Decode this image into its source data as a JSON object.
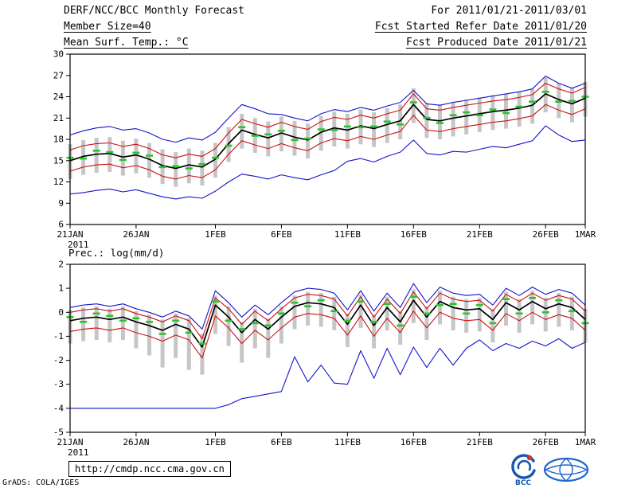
{
  "header": {
    "title": "DERF/NCC/BCC Monthly Forecast",
    "member_size": "Member Size=40",
    "for_range": "For 2011/01/21-2011/03/01",
    "fcst_started": "Fcst Started Refer Date 2011/01/20",
    "fcst_produced": "Fcst Produced Date 2011/01/21"
  },
  "footer": {
    "url": "http://cmdp.ncc.cma.gov.cn",
    "credit": "GrADS: COLA/IGES",
    "logos": [
      "bcc-logo",
      "cma-logo"
    ]
  },
  "colors": {
    "envelope_blue": "#1414cc",
    "bound_red": "#cc1111",
    "mean_black": "#000000",
    "median_green": "#2fc12f",
    "spread_gray": "#c6c6c6",
    "logo_blue": "#1558b0",
    "logo_red": "#d43224"
  },
  "chart_data": [
    {
      "type": "line",
      "title": "Mean Surf. Temp.: °C",
      "x_days": 40,
      "x_tick_labels": [
        "21JAN",
        "26JAN",
        "1FEB",
        "6FEB",
        "11FEB",
        "16FEB",
        "21FEB",
        "26FEB",
        "1MAR"
      ],
      "x_tick_day_index": [
        0,
        5,
        11,
        16,
        21,
        26,
        31,
        36,
        39
      ],
      "x_sub_label": "2011",
      "ylim": [
        6,
        30
      ],
      "yticks": [
        30,
        27,
        24,
        21,
        18,
        15,
        12,
        9,
        6
      ],
      "grid": false,
      "legend": "none",
      "series": [
        {
          "name": "ensemble-spread",
          "type": "range-bar",
          "color": "#c6c6c6",
          "low": [
            12.4,
            13.0,
            13.3,
            13.4,
            12.9,
            13.2,
            12.6,
            11.7,
            11.3,
            11.8,
            11.5,
            12.6,
            14.8,
            16.7,
            16.1,
            15.6,
            16.3,
            15.7,
            15.3,
            16.4,
            17.0,
            16.7,
            17.3,
            16.9,
            17.5,
            18.0,
            20.3,
            18.2,
            18.0,
            18.4,
            18.7,
            19.0,
            19.3,
            19.5,
            19.8,
            20.2,
            21.8,
            21.0,
            20.4,
            21.2
          ],
          "high": [
            17.3,
            17.9,
            18.2,
            18.3,
            17.8,
            18.1,
            17.5,
            16.6,
            16.2,
            16.7,
            16.4,
            17.5,
            19.7,
            21.6,
            21.0,
            20.5,
            21.2,
            20.6,
            20.2,
            21.3,
            21.9,
            21.6,
            22.2,
            21.8,
            22.4,
            22.9,
            25.2,
            23.1,
            22.9,
            23.3,
            23.6,
            23.9,
            24.2,
            24.4,
            24.7,
            25.1,
            26.7,
            25.9,
            25.3,
            26.1
          ]
        },
        {
          "name": "ensemble-max",
          "type": "line",
          "color": "#1414cc",
          "values": [
            18.6,
            19.2,
            19.6,
            19.8,
            19.3,
            19.5,
            18.9,
            18.0,
            17.6,
            18.2,
            17.9,
            19.0,
            21.0,
            22.9,
            22.3,
            21.6,
            21.5,
            21.0,
            20.6,
            21.6,
            22.2,
            21.9,
            22.5,
            22.1,
            22.7,
            23.2,
            24.9,
            23.0,
            22.8,
            23.2,
            23.5,
            23.8,
            24.1,
            24.4,
            24.7,
            25.1,
            26.9,
            25.9,
            25.2,
            25.9
          ]
        },
        {
          "name": "ensemble-min",
          "type": "line",
          "color": "#1414cc",
          "values": [
            10.3,
            10.5,
            10.8,
            11.0,
            10.6,
            10.9,
            10.4,
            9.9,
            9.6,
            9.9,
            9.7,
            10.7,
            12.0,
            13.1,
            12.8,
            12.4,
            13.0,
            12.6,
            12.3,
            13.0,
            13.6,
            14.9,
            15.3,
            14.8,
            15.6,
            16.2,
            17.9,
            16.0,
            15.8,
            16.3,
            16.2,
            16.6,
            17.0,
            16.8,
            17.3,
            17.8,
            19.9,
            18.6,
            17.7,
            17.9
          ]
        },
        {
          "name": "upper-bound",
          "type": "line",
          "color": "#cc1111",
          "values": [
            16.5,
            17.1,
            17.4,
            17.5,
            17.0,
            17.3,
            16.7,
            15.8,
            15.4,
            15.9,
            15.6,
            16.7,
            18.9,
            20.8,
            20.2,
            19.7,
            20.4,
            19.8,
            19.4,
            20.5,
            21.1,
            20.8,
            21.4,
            21.0,
            21.6,
            22.1,
            24.4,
            22.3,
            22.1,
            22.5,
            22.8,
            23.1,
            23.4,
            23.6,
            23.9,
            24.3,
            25.9,
            25.1,
            24.5,
            25.3
          ]
        },
        {
          "name": "lower-bound",
          "type": "line",
          "color": "#cc1111",
          "values": [
            13.5,
            14.1,
            14.4,
            14.5,
            14.0,
            14.3,
            13.7,
            12.8,
            12.4,
            12.9,
            12.6,
            13.7,
            15.9,
            17.8,
            17.2,
            16.7,
            17.4,
            16.8,
            16.4,
            17.5,
            18.1,
            17.8,
            18.4,
            18.0,
            18.6,
            19.1,
            21.4,
            19.3,
            19.1,
            19.5,
            19.8,
            20.1,
            20.4,
            20.6,
            20.9,
            21.3,
            22.9,
            22.1,
            21.5,
            22.3
          ]
        },
        {
          "name": "ensemble-mean",
          "type": "line",
          "color": "#000000",
          "width": 1.7,
          "values": [
            15.0,
            15.6,
            15.9,
            16.0,
            15.5,
            15.8,
            15.2,
            14.3,
            13.9,
            14.4,
            14.1,
            15.2,
            17.4,
            19.3,
            18.7,
            18.2,
            18.9,
            18.3,
            17.9,
            19.0,
            19.6,
            19.3,
            19.9,
            19.5,
            20.1,
            20.6,
            22.9,
            20.8,
            20.6,
            21.0,
            21.3,
            21.6,
            21.9,
            22.1,
            22.4,
            22.8,
            24.4,
            23.6,
            23.0,
            23.8
          ]
        },
        {
          "name": "ensemble-median",
          "type": "dash",
          "color": "#2fc12f",
          "values": [
            15.4,
            15.3,
            16.4,
            16.2,
            15.1,
            16.1,
            15.7,
            14.1,
            14.2,
            13.9,
            14.5,
            15.4,
            17.1,
            19.7,
            18.5,
            18.7,
            19.2,
            17.9,
            18.1,
            19.4,
            19.3,
            19.8,
            19.7,
            19.8,
            20.5,
            20.1,
            23.2,
            21.0,
            20.3,
            21.4,
            21.8,
            21.4,
            22.2,
            21.7,
            22.6,
            23.3,
            24.7,
            23.3,
            23.4,
            24.0
          ]
        }
      ]
    },
    {
      "type": "line",
      "title": "Prec.: log(mm/d)",
      "x_days": 40,
      "x_tick_labels": [
        "21JAN",
        "26JAN",
        "1FEB",
        "6FEB",
        "11FEB",
        "16FEB",
        "21FEB",
        "26FEB",
        "1MAR"
      ],
      "x_tick_day_index": [
        0,
        5,
        11,
        16,
        21,
        26,
        31,
        36,
        39
      ],
      "x_sub_label": "2011",
      "ylim": [
        -5,
        2
      ],
      "yticks": [
        2,
        1,
        0,
        -1,
        -2,
        -3,
        -4,
        -5
      ],
      "grid": false,
      "legend": "none",
      "series": [
        {
          "name": "ensemble-spread",
          "type": "range-bar",
          "color": "#c6c6c6",
          "low": [
            -1.3,
            -1.2,
            -1.15,
            -1.25,
            -1.15,
            -1.5,
            -1.8,
            -2.3,
            -1.9,
            -2.4,
            -2.6,
            -0.9,
            -1.4,
            -2.1,
            -1.5,
            -1.9,
            -1.3,
            -0.7,
            -0.55,
            -0.6,
            -0.75,
            -1.45,
            -0.65,
            -1.5,
            -0.75,
            -1.35,
            -0.45,
            -1.15,
            -0.5,
            -0.75,
            -0.85,
            -0.8,
            -1.25,
            -0.55,
            -0.85,
            -0.5,
            -0.8,
            -0.6,
            -0.75,
            -1.25
          ],
          "high": [
            0.1,
            0.2,
            0.25,
            0.15,
            0.25,
            0.05,
            -0.1,
            -0.3,
            -0.05,
            -0.25,
            -0.9,
            0.7,
            0.25,
            -0.4,
            0.15,
            -0.25,
            0.25,
            0.7,
            0.85,
            0.8,
            0.65,
            -0.05,
            0.75,
            -0.1,
            0.65,
            0.05,
            0.95,
            0.25,
            0.9,
            0.65,
            0.55,
            0.6,
            0.15,
            0.85,
            0.55,
            0.9,
            0.6,
            0.8,
            0.65,
            0.15
          ]
        },
        {
          "name": "ensemble-max",
          "type": "line",
          "color": "#1414cc",
          "values": [
            0.2,
            0.3,
            0.35,
            0.25,
            0.35,
            0.15,
            0.0,
            -0.2,
            0.05,
            -0.15,
            -0.7,
            0.9,
            0.4,
            -0.2,
            0.3,
            -0.1,
            0.4,
            0.85,
            1.0,
            0.95,
            0.8,
            0.1,
            0.9,
            0.05,
            0.8,
            0.2,
            1.2,
            0.4,
            1.05,
            0.8,
            0.7,
            0.75,
            0.3,
            1.0,
            0.7,
            1.05,
            0.75,
            0.95,
            0.8,
            0.3
          ]
        },
        {
          "name": "ensemble-min",
          "type": "line",
          "color": "#1414cc",
          "values": [
            -4.0,
            -4.0,
            -4.0,
            -4.0,
            -4.0,
            -4.0,
            -4.0,
            -4.0,
            -4.0,
            -4.0,
            -4.0,
            -4.0,
            -3.85,
            -3.6,
            -3.5,
            -3.4,
            -3.3,
            -1.85,
            -2.9,
            -2.2,
            -2.95,
            -3.0,
            -1.6,
            -2.75,
            -1.5,
            -2.6,
            -1.45,
            -2.3,
            -1.5,
            -2.2,
            -1.5,
            -1.15,
            -1.6,
            -1.3,
            -1.5,
            -1.2,
            -1.4,
            -1.1,
            -1.5,
            -1.25
          ]
        },
        {
          "name": "upper-bound",
          "type": "line",
          "color": "#cc1111",
          "values": [
            0.0,
            0.1,
            0.15,
            0.05,
            0.15,
            -0.05,
            -0.2,
            -0.4,
            -0.15,
            -0.35,
            -1.1,
            0.6,
            0.15,
            -0.5,
            0.05,
            -0.35,
            0.15,
            0.6,
            0.75,
            0.7,
            0.55,
            -0.15,
            0.65,
            -0.2,
            0.55,
            -0.05,
            0.85,
            0.15,
            0.8,
            0.55,
            0.45,
            0.5,
            0.05,
            0.75,
            0.45,
            0.8,
            0.5,
            0.7,
            0.55,
            0.05
          ]
        },
        {
          "name": "lower-bound",
          "type": "line",
          "color": "#cc1111",
          "values": [
            -0.8,
            -0.7,
            -0.65,
            -0.75,
            -0.65,
            -0.85,
            -1.0,
            -1.2,
            -0.95,
            -1.15,
            -1.9,
            -0.15,
            -0.65,
            -1.3,
            -0.75,
            -1.15,
            -0.65,
            -0.2,
            -0.05,
            -0.1,
            -0.25,
            -0.95,
            -0.15,
            -1.0,
            -0.25,
            -0.85,
            0.05,
            -0.65,
            0.0,
            -0.25,
            -0.35,
            -0.3,
            -0.75,
            -0.05,
            -0.35,
            0.0,
            -0.3,
            -0.1,
            -0.25,
            -0.75
          ]
        },
        {
          "name": "ensemble-mean",
          "type": "line",
          "color": "#000000",
          "width": 1.7,
          "values": [
            -0.35,
            -0.25,
            -0.2,
            -0.3,
            -0.2,
            -0.4,
            -0.55,
            -0.75,
            -0.5,
            -0.7,
            -1.45,
            0.3,
            -0.2,
            -0.85,
            -0.3,
            -0.7,
            -0.2,
            0.25,
            0.4,
            0.35,
            0.2,
            -0.5,
            0.3,
            -0.55,
            0.2,
            -0.4,
            0.5,
            -0.2,
            0.45,
            0.2,
            0.1,
            0.15,
            -0.3,
            0.4,
            0.1,
            0.45,
            0.15,
            0.35,
            0.2,
            -0.3
          ]
        },
        {
          "name": "ensemble-median",
          "type": "dash",
          "color": "#2fc12f",
          "values": [
            -0.2,
            -0.4,
            -0.05,
            -0.15,
            -0.35,
            -0.25,
            -0.4,
            -0.9,
            -0.35,
            -0.85,
            -1.3,
            0.45,
            -0.35,
            -0.7,
            -0.45,
            -0.55,
            -0.05,
            0.4,
            0.25,
            0.5,
            0.05,
            -0.35,
            0.45,
            -0.4,
            0.35,
            -0.55,
            0.65,
            -0.05,
            0.3,
            0.35,
            -0.05,
            0.3,
            -0.45,
            0.55,
            -0.05,
            0.6,
            0.0,
            0.5,
            0.05,
            -0.45
          ]
        }
      ]
    }
  ]
}
